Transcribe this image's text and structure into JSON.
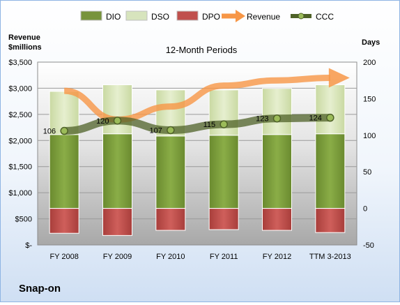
{
  "chart_data": {
    "type": "bar",
    "title": "12-Month Periods",
    "company": "Snap-on",
    "left_axis_title_line1": "Revenue",
    "left_axis_title_line2": "$millions",
    "right_axis_title": "Days",
    "categories": [
      "FY 2008",
      "FY 2009",
      "FY 2010",
      "FY 2011",
      "FY 2012",
      "TTM 3-2013"
    ],
    "left_axis": {
      "min": 0,
      "max": 3500,
      "step": 500,
      "tick_labels": [
        "$-",
        "$500",
        "$1,000",
        "$1,500",
        "$2,000",
        "$2,500",
        "$3,000",
        "$3,500"
      ]
    },
    "right_axis": {
      "min": -50,
      "max": 200,
      "step": 50,
      "tick_labels": [
        "-50",
        "0",
        "50",
        "100",
        "150",
        "200"
      ]
    },
    "legend_position": "top",
    "legend": [
      {
        "name": "DIO",
        "color": "#77933c",
        "kind": "bar"
      },
      {
        "name": "DSO",
        "color": "#d7e4bd",
        "kind": "bar"
      },
      {
        "name": "DPO",
        "color": "#c0504d",
        "kind": "bar"
      },
      {
        "name": "Revenue",
        "color": "#f79646",
        "kind": "arrow"
      },
      {
        "name": "CCC",
        "color": "#4f6228",
        "kind": "line"
      }
    ],
    "series": [
      {
        "name": "DIO",
        "axis": "right",
        "values": [
          101,
          102,
          99,
          100,
          101,
          102
        ]
      },
      {
        "name": "DSO",
        "axis": "right",
        "values": [
          59,
          67,
          63,
          62,
          63,
          67
        ]
      },
      {
        "name": "DPO",
        "axis": "right",
        "values": [
          -34,
          -37,
          -30,
          -29,
          -30,
          -33
        ]
      },
      {
        "name": "CCC",
        "axis": "right",
        "values": [
          106,
          120,
          107,
          115,
          123,
          124
        ]
      },
      {
        "name": "Revenue",
        "axis": "left",
        "values": [
          2950,
          2400,
          2650,
          3050,
          3150,
          3200
        ]
      }
    ],
    "ccc_labels": [
      "106",
      "120",
      "107",
      "115",
      "123",
      "124"
    ],
    "grid": true
  }
}
